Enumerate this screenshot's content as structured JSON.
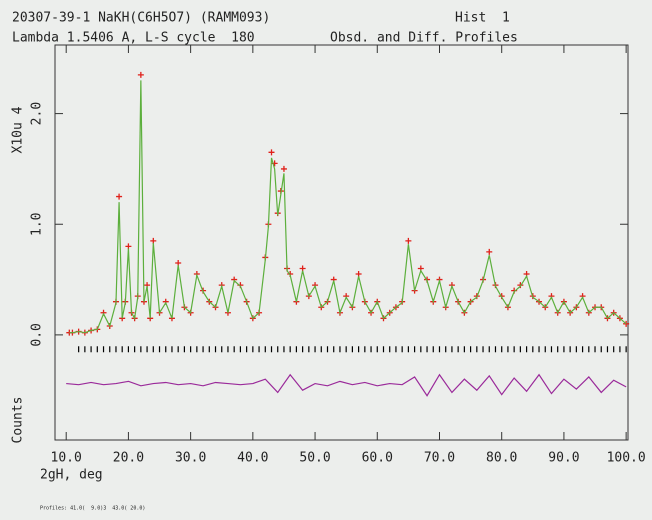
{
  "chart_data": {
    "type": "rietveld",
    "title": "20307-39-1 NaKH(C6H5O7) (RAMM093)",
    "hist_label": "Hist  1",
    "subtitle": "Lambda 1.5406 A, L-S cycle  180",
    "plot_label": "Obsd. and Diff. Profiles",
    "y_label": "X10u 4",
    "y_label_lower": "Counts",
    "x_label": "2gH, deg",
    "footnote": "Profiles: 41.0(  9.0)3  43.0( 20.0)",
    "xlim": [
      8.2,
      100.3
    ],
    "ylim": [
      -0.95,
      2.62
    ],
    "xticks": [
      {
        "value": 10,
        "label": "10.0"
      },
      {
        "value": 20,
        "label": "20.0"
      },
      {
        "value": 30,
        "label": "30.0"
      },
      {
        "value": 40,
        "label": "40.0"
      },
      {
        "value": 50,
        "label": "50.0"
      },
      {
        "value": 60,
        "label": "60.0"
      },
      {
        "value": 70,
        "label": "70.0"
      },
      {
        "value": 80,
        "label": "80.0"
      },
      {
        "value": 90,
        "label": "90.0"
      },
      {
        "value": 100,
        "label": "100.0"
      }
    ],
    "yticks": [
      {
        "value": 0,
        "label": "0.0"
      },
      {
        "value": 1,
        "label": "1.0"
      },
      {
        "value": 2,
        "label": "2.0"
      }
    ],
    "x": [
      10.5,
      11,
      12,
      13,
      14,
      15,
      16,
      17,
      18,
      18.5,
      19,
      19.5,
      20,
      20.5,
      21,
      21.5,
      22,
      22.5,
      23,
      23.5,
      24,
      25,
      26,
      27,
      28,
      29,
      30,
      31,
      32,
      33,
      34,
      35,
      36,
      37,
      38,
      39,
      40,
      41,
      42,
      42.5,
      43,
      43.5,
      44,
      44.5,
      45,
      45.5,
      46,
      47,
      48,
      49,
      50,
      51,
      52,
      53,
      54,
      55,
      56,
      57,
      58,
      59,
      60,
      61,
      62,
      63,
      64,
      65,
      66,
      67,
      68,
      69,
      70,
      71,
      72,
      73,
      74,
      75,
      76,
      77,
      78,
      79,
      80,
      81,
      82,
      83,
      84,
      85,
      86,
      87,
      88,
      89,
      90,
      91,
      92,
      93,
      94,
      95,
      96,
      97,
      98,
      99,
      100
    ],
    "series": [
      {
        "color": "#e0201a",
        "marker": "+",
        "values": [
          0.02,
          0.02,
          0.03,
          0.02,
          0.04,
          0.05,
          0.2,
          0.08,
          0.3,
          1.25,
          0.15,
          0.3,
          0.8,
          0.2,
          0.15,
          0.35,
          2.35,
          0.3,
          0.45,
          0.15,
          0.85,
          0.2,
          0.3,
          0.15,
          0.65,
          0.25,
          0.2,
          0.55,
          0.4,
          0.3,
          0.25,
          0.45,
          0.2,
          0.5,
          0.45,
          0.3,
          0.15,
          0.2,
          0.7,
          1.0,
          1.65,
          1.55,
          1.1,
          1.3,
          1.5,
          0.6,
          0.55,
          0.3,
          0.6,
          0.35,
          0.45,
          0.25,
          0.3,
          0.5,
          0.2,
          0.35,
          0.25,
          0.55,
          0.3,
          0.2,
          0.3,
          0.15,
          0.2,
          0.25,
          0.3,
          0.85,
          0.4,
          0.6,
          0.5,
          0.3,
          0.5,
          0.25,
          0.45,
          0.3,
          0.2,
          0.3,
          0.35,
          0.5,
          0.75,
          0.45,
          0.35,
          0.25,
          0.4,
          0.45,
          0.55,
          0.35,
          0.3,
          0.25,
          0.35,
          0.2,
          0.3,
          0.2,
          0.25,
          0.35,
          0.2,
          0.25,
          0.25,
          0.15,
          0.2,
          0.15,
          0.1
        ]
      },
      {
        "color": "#5caf3c",
        "marker": "line",
        "values": [
          0.02,
          0.02,
          0.03,
          0.02,
          0.04,
          0.05,
          0.19,
          0.08,
          0.29,
          1.2,
          0.15,
          0.29,
          0.78,
          0.2,
          0.15,
          0.34,
          2.3,
          0.3,
          0.44,
          0.15,
          0.83,
          0.2,
          0.29,
          0.15,
          0.63,
          0.25,
          0.2,
          0.54,
          0.39,
          0.3,
          0.25,
          0.44,
          0.2,
          0.49,
          0.44,
          0.3,
          0.15,
          0.2,
          0.68,
          0.98,
          1.6,
          1.5,
          1.08,
          1.27,
          1.46,
          0.58,
          0.54,
          0.3,
          0.58,
          0.35,
          0.44,
          0.25,
          0.3,
          0.49,
          0.2,
          0.34,
          0.25,
          0.53,
          0.3,
          0.2,
          0.3,
          0.15,
          0.2,
          0.25,
          0.29,
          0.82,
          0.4,
          0.58,
          0.49,
          0.3,
          0.49,
          0.25,
          0.44,
          0.3,
          0.2,
          0.3,
          0.34,
          0.49,
          0.72,
          0.44,
          0.34,
          0.25,
          0.39,
          0.44,
          0.53,
          0.34,
          0.3,
          0.25,
          0.34,
          0.2,
          0.3,
          0.2,
          0.25,
          0.34,
          0.2,
          0.25,
          0.25,
          0.15,
          0.2,
          0.15,
          0.1
        ]
      },
      {
        "color": "#9a2a9a",
        "marker": "line",
        "x": [
          10,
          12,
          14,
          16,
          18,
          20,
          22,
          24,
          26,
          28,
          30,
          32,
          34,
          36,
          38,
          40,
          42,
          44,
          46,
          48,
          50,
          52,
          54,
          56,
          58,
          60,
          62,
          64,
          66,
          68,
          70,
          72,
          74,
          76,
          78,
          80,
          82,
          84,
          86,
          88,
          90,
          92,
          94,
          96,
          98,
          100
        ],
        "values": [
          -0.44,
          -0.45,
          -0.43,
          -0.45,
          -0.44,
          -0.42,
          -0.46,
          -0.44,
          -0.43,
          -0.45,
          -0.44,
          -0.46,
          -0.43,
          -0.44,
          -0.45,
          -0.44,
          -0.4,
          -0.52,
          -0.36,
          -0.5,
          -0.44,
          -0.46,
          -0.42,
          -0.45,
          -0.43,
          -0.46,
          -0.44,
          -0.45,
          -0.38,
          -0.55,
          -0.36,
          -0.52,
          -0.4,
          -0.5,
          -0.37,
          -0.54,
          -0.39,
          -0.51,
          -0.36,
          -0.53,
          -0.4,
          -0.49,
          -0.38,
          -0.52,
          -0.41,
          -0.47
        ]
      }
    ],
    "reflections": {
      "color": "#000000",
      "level": -0.13,
      "x": [
        12,
        13,
        14,
        15,
        16,
        17,
        18,
        19,
        20,
        21,
        22,
        23,
        24,
        25,
        26,
        27,
        28,
        29,
        30,
        31,
        32,
        33,
        34,
        35,
        36,
        37,
        38,
        39,
        40,
        41,
        42,
        43,
        44,
        45,
        46,
        47,
        48,
        49,
        50,
        51,
        52,
        53,
        54,
        55,
        56,
        57,
        58,
        59,
        60,
        61,
        62,
        63,
        64,
        65,
        66,
        67,
        68,
        69,
        70,
        71,
        72,
        73,
        74,
        75,
        76,
        77,
        78,
        79,
        80,
        81,
        82,
        83,
        84,
        85,
        86,
        87,
        88,
        89,
        90,
        91,
        92,
        93,
        94,
        95,
        96,
        97,
        98,
        99,
        100
      ]
    }
  }
}
